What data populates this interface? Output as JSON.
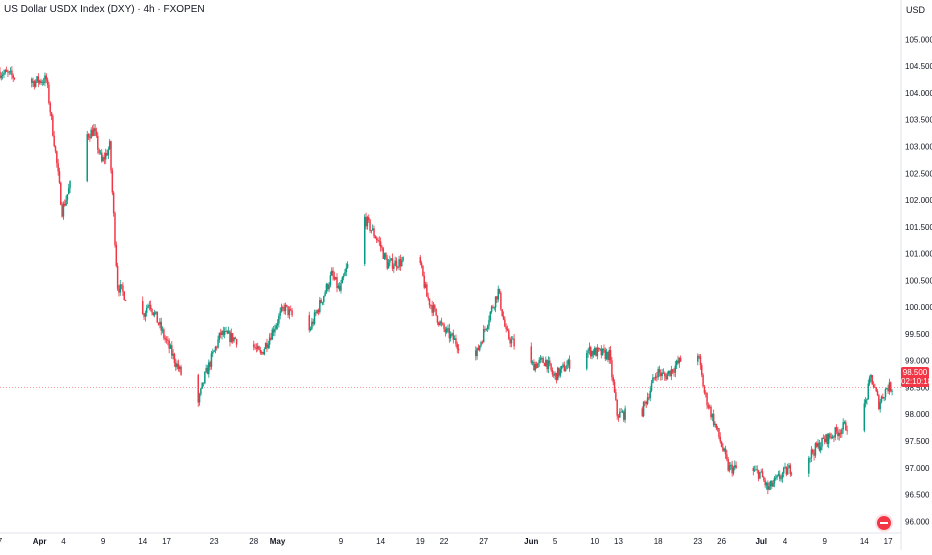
{
  "header": {
    "title": "US Dollar USDX Index (DXY) · 4h · FXOPEN",
    "currency": "USD"
  },
  "price_tag": {
    "price": "98.500",
    "countdown": "02:10:18"
  },
  "colors": {
    "up": "#089981",
    "down": "#f23645",
    "axis_text": "#131722",
    "price_line": "#f23645"
  },
  "chart_data": {
    "type": "candlestick",
    "title": "US Dollar USDX Index (DXY) · 4h · FXOPEN",
    "ylabel": "USD",
    "ylim": [
      95.8,
      105.4
    ],
    "yticks": [
      105.0,
      104.5,
      104.0,
      103.5,
      103.0,
      102.5,
      102.0,
      101.5,
      101.0,
      100.5,
      100.0,
      99.5,
      99.0,
      98.5,
      98.0,
      97.5,
      97.0,
      96.5,
      96.0
    ],
    "ytick_labels": [
      "105.000",
      "104.500",
      "104.000",
      "103.500",
      "103.000",
      "102.500",
      "102.000",
      "101.500",
      "101.000",
      "100.500",
      "100.000",
      "99.500",
      "99.000",
      "98.500",
      "98.000",
      "97.500",
      "97.000",
      "96.500",
      "96.000"
    ],
    "x_labels": [
      "7",
      "Apr",
      "4",
      "9",
      "14",
      "17",
      "23",
      "28",
      "May",
      "9",
      "14",
      "19",
      "22",
      "27",
      "Jun",
      "5",
      "10",
      "13",
      "18",
      "23",
      "26",
      "Jul",
      "4",
      "9",
      "14",
      "17"
    ],
    "x_dates": [
      "2025-03-27",
      "2025-04-01",
      "2025-04-04",
      "2025-04-09",
      "2025-04-14",
      "2025-04-17",
      "2025-04-23",
      "2025-04-28",
      "2025-05-01",
      "2025-05-09",
      "2025-05-14",
      "2025-05-19",
      "2025-05-22",
      "2025-05-27",
      "2025-06-02",
      "2025-06-05",
      "2025-06-10",
      "2025-06-13",
      "2025-06-18",
      "2025-06-23",
      "2025-06-26",
      "2025-07-01",
      "2025-07-04",
      "2025-07-09",
      "2025-07-14",
      "2025-07-17"
    ],
    "last_price": 98.5,
    "grid": false,
    "path_anchors": [
      [
        "2025-03-27",
        104.4
      ],
      [
        "2025-03-31",
        104.2
      ],
      [
        "2025-04-02",
        104.25
      ],
      [
        "2025-04-03",
        103.1
      ],
      [
        "2025-04-04",
        101.8
      ],
      [
        "2025-04-07",
        103.2
      ],
      [
        "2025-04-08",
        103.3
      ],
      [
        "2025-04-09",
        102.7
      ],
      [
        "2025-04-10",
        103.0
      ],
      [
        "2025-04-11",
        100.4
      ],
      [
        "2025-04-14",
        99.8
      ],
      [
        "2025-04-15",
        100.1
      ],
      [
        "2025-04-17",
        99.4
      ],
      [
        "2025-04-21",
        98.1
      ],
      [
        "2025-04-22",
        98.7
      ],
      [
        "2025-04-24",
        99.5
      ],
      [
        "2025-04-28",
        99.3
      ],
      [
        "2025-04-29",
        99.1
      ],
      [
        "2025-05-02",
        100.0
      ],
      [
        "2025-05-05",
        99.5
      ],
      [
        "2025-05-08",
        100.6
      ],
      [
        "2025-05-09",
        100.3
      ],
      [
        "2025-05-12",
        101.7
      ],
      [
        "2025-05-14",
        101.2
      ],
      [
        "2025-05-15",
        100.8
      ],
      [
        "2025-05-19",
        100.9
      ],
      [
        "2025-05-20",
        100.2
      ],
      [
        "2025-05-22",
        99.6
      ],
      [
        "2025-05-26",
        99.0
      ],
      [
        "2025-05-28",
        99.9
      ],
      [
        "2025-05-29",
        100.3
      ],
      [
        "2025-05-30",
        99.5
      ],
      [
        "2025-06-02",
        98.9
      ],
      [
        "2025-06-04",
        99.0
      ],
      [
        "2025-06-05",
        98.7
      ],
      [
        "2025-06-09",
        99.2
      ],
      [
        "2025-06-12",
        99.1
      ],
      [
        "2025-06-13",
        98.0
      ],
      [
        "2025-06-16",
        98.0
      ],
      [
        "2025-06-18",
        98.8
      ],
      [
        "2025-06-19",
        98.7
      ],
      [
        "2025-06-23",
        99.3
      ],
      [
        "2025-06-24",
        98.4
      ],
      [
        "2025-06-26",
        97.5
      ],
      [
        "2025-06-27",
        97.0
      ],
      [
        "2025-07-01",
        96.9
      ],
      [
        "2025-07-02",
        96.6
      ],
      [
        "2025-07-04",
        96.9
      ],
      [
        "2025-07-07",
        97.2
      ],
      [
        "2025-07-09",
        97.5
      ],
      [
        "2025-07-11",
        97.7
      ],
      [
        "2025-07-14",
        98.0
      ],
      [
        "2025-07-15",
        98.7
      ],
      [
        "2025-07-16",
        98.2
      ],
      [
        "2025-07-17",
        98.5
      ]
    ]
  }
}
